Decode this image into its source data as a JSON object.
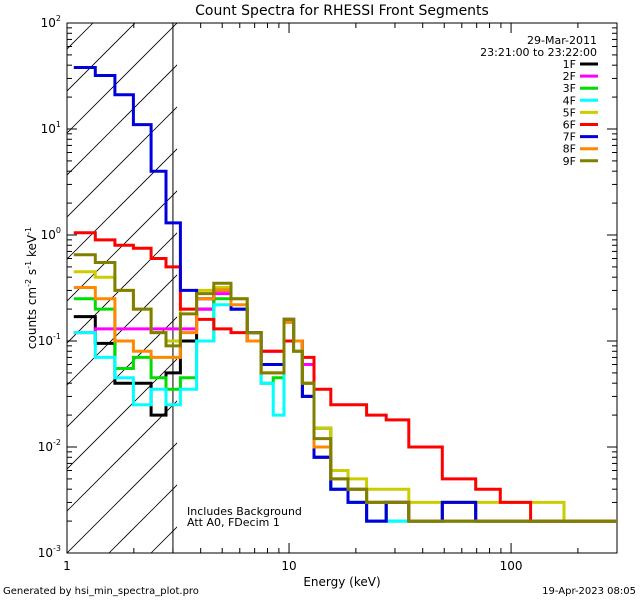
{
  "chart_data": {
    "type": "line",
    "title": "Count Spectra for RHESSI Front Segments",
    "xlabel": "Energy (keV)",
    "ylabel": "counts cm^-2 s^-1 keV^-1",
    "xscale": "log",
    "yscale": "log",
    "xlim": [
      1,
      300
    ],
    "ylim": [
      0.001,
      100
    ],
    "x_tick_labels": [
      {
        "value": 1,
        "label": "1"
      },
      {
        "value": 10,
        "label": "10"
      },
      {
        "value": 100,
        "label": "100"
      }
    ],
    "y_tick_labels": [
      {
        "value": 0.001,
        "base": "10",
        "exp": "-3"
      },
      {
        "value": 0.01,
        "base": "10",
        "exp": "-2"
      },
      {
        "value": 0.1,
        "base": "10",
        "exp": "-1"
      },
      {
        "value": 1,
        "base": "10",
        "exp": "0"
      },
      {
        "value": 10,
        "base": "10",
        "exp": "1"
      },
      {
        "value": 100,
        "base": "10",
        "exp": "2"
      }
    ],
    "date": "29-Mar-2011",
    "time_range": "23:21:00 to 23:22:00",
    "hatched_region": [
      1,
      3
    ],
    "annotations": [
      "Includes Background",
      "Att A0, FDecim 1"
    ],
    "series": [
      {
        "name": "1F",
        "color": "#000000",
        "points": [
          [
            1.2,
            0.17
          ],
          [
            1.5,
            0.095
          ],
          [
            1.8,
            0.04
          ],
          [
            2.2,
            0.04
          ],
          [
            2.6,
            0.02
          ],
          [
            3.0,
            0.05
          ],
          [
            3.5,
            0.1
          ],
          [
            4.2,
            0.2
          ],
          [
            5,
            0.3
          ],
          [
            6,
            0.2
          ],
          [
            7,
            0.12
          ],
          [
            8,
            0.06
          ],
          [
            9,
            0.06
          ],
          [
            10,
            0.16
          ],
          [
            11,
            0.1
          ],
          [
            12,
            0.03
          ],
          [
            14,
            0.008
          ],
          [
            17,
            0.004
          ],
          [
            20,
            0.003
          ],
          [
            25,
            0.002
          ],
          [
            30,
            0.003
          ],
          [
            40,
            0.002
          ],
          [
            60,
            0.003
          ],
          [
            80,
            0.002
          ],
          [
            100,
            0.002
          ],
          [
            150,
            0.002
          ],
          [
            200,
            0.002
          ],
          [
            280,
            0.002
          ]
        ]
      },
      {
        "name": "2F",
        "color": "#ff00ff",
        "points": [
          [
            1.2,
            0.12
          ],
          [
            1.5,
            0.13
          ],
          [
            1.8,
            0.13
          ],
          [
            2.2,
            0.13
          ],
          [
            2.6,
            0.13
          ],
          [
            3.0,
            0.13
          ],
          [
            3.5,
            0.13
          ],
          [
            4.2,
            0.2
          ],
          [
            5,
            0.28
          ],
          [
            6,
            0.2
          ],
          [
            7,
            0.1
          ],
          [
            8,
            0.08
          ],
          [
            9,
            0.08
          ],
          [
            10,
            0.16
          ],
          [
            11,
            0.1
          ],
          [
            12,
            0.06
          ],
          [
            14,
            0.015
          ],
          [
            17,
            0.006
          ],
          [
            20,
            0.004
          ],
          [
            25,
            0.003
          ],
          [
            30,
            0.003
          ],
          [
            40,
            0.002
          ],
          [
            60,
            0.002
          ],
          [
            80,
            0.002
          ],
          [
            100,
            0.002
          ],
          [
            150,
            0.002
          ],
          [
            200,
            0.002
          ],
          [
            280,
            0.002
          ]
        ]
      },
      {
        "name": "3F",
        "color": "#00dd00",
        "points": [
          [
            1.2,
            0.25
          ],
          [
            1.5,
            0.2
          ],
          [
            1.8,
            0.055
          ],
          [
            2.2,
            0.07
          ],
          [
            2.6,
            0.045
          ],
          [
            3.0,
            0.035
          ],
          [
            3.5,
            0.045
          ],
          [
            4.2,
            0.1
          ],
          [
            5,
            0.25
          ],
          [
            6,
            0.2
          ],
          [
            7,
            0.1
          ],
          [
            8,
            0.04
          ],
          [
            9,
            0.045
          ],
          [
            10,
            0.15
          ],
          [
            11,
            0.08
          ],
          [
            12,
            0.04
          ],
          [
            14,
            0.015
          ],
          [
            17,
            0.006
          ],
          [
            20,
            0.004
          ],
          [
            25,
            0.003
          ],
          [
            30,
            0.002
          ],
          [
            40,
            0.002
          ],
          [
            60,
            0.002
          ],
          [
            80,
            0.002
          ],
          [
            100,
            0.002
          ],
          [
            150,
            0.002
          ],
          [
            200,
            0.002
          ],
          [
            280,
            0.002
          ]
        ]
      },
      {
        "name": "4F",
        "color": "#00ffff",
        "points": [
          [
            1.2,
            0.12
          ],
          [
            1.5,
            0.07
          ],
          [
            1.8,
            0.045
          ],
          [
            2.2,
            0.025
          ],
          [
            2.6,
            0.035
          ],
          [
            3.0,
            0.025
          ],
          [
            3.5,
            0.035
          ],
          [
            4.2,
            0.1
          ],
          [
            5,
            0.22
          ],
          [
            6,
            0.2
          ],
          [
            7,
            0.12
          ],
          [
            8,
            0.04
          ],
          [
            9,
            0.02
          ],
          [
            10,
            0.15
          ],
          [
            11,
            0.1
          ],
          [
            12,
            0.04
          ],
          [
            14,
            0.01
          ],
          [
            17,
            0.004
          ],
          [
            20,
            0.003
          ],
          [
            25,
            0.002
          ],
          [
            30,
            0.002
          ],
          [
            40,
            0.002
          ],
          [
            60,
            0.002
          ],
          [
            80,
            0.002
          ],
          [
            100,
            0.002
          ],
          [
            150,
            0.002
          ],
          [
            200,
            0.002
          ],
          [
            280,
            0.002
          ]
        ]
      },
      {
        "name": "5F",
        "color": "#cccc00",
        "points": [
          [
            1.2,
            0.45
          ],
          [
            1.5,
            0.4
          ],
          [
            1.8,
            0.3
          ],
          [
            2.2,
            0.2
          ],
          [
            2.6,
            0.12
          ],
          [
            3.0,
            0.1
          ],
          [
            3.5,
            0.2
          ],
          [
            4.2,
            0.3
          ],
          [
            5,
            0.32
          ],
          [
            6,
            0.25
          ],
          [
            7,
            0.12
          ],
          [
            8,
            0.06
          ],
          [
            9,
            0.06
          ],
          [
            10,
            0.16
          ],
          [
            11,
            0.1
          ],
          [
            12,
            0.04
          ],
          [
            14,
            0.015
          ],
          [
            17,
            0.006
          ],
          [
            20,
            0.005
          ],
          [
            25,
            0.004
          ],
          [
            30,
            0.004
          ],
          [
            40,
            0.003
          ],
          [
            60,
            0.003
          ],
          [
            80,
            0.003
          ],
          [
            100,
            0.003
          ],
          [
            150,
            0.003
          ],
          [
            200,
            0.002
          ],
          [
            280,
            0.002
          ]
        ]
      },
      {
        "name": "6F",
        "color": "#ff0000",
        "points": [
          [
            1.2,
            1.05
          ],
          [
            1.5,
            0.9
          ],
          [
            1.8,
            0.8
          ],
          [
            2.2,
            0.75
          ],
          [
            2.6,
            0.6
          ],
          [
            3.0,
            0.5
          ],
          [
            3.5,
            0.2
          ],
          [
            4.2,
            0.16
          ],
          [
            5,
            0.13
          ],
          [
            6,
            0.12
          ],
          [
            7,
            0.1
          ],
          [
            8,
            0.08
          ],
          [
            9,
            0.08
          ],
          [
            10,
            0.1
          ],
          [
            11,
            0.1
          ],
          [
            12,
            0.07
          ],
          [
            14,
            0.035
          ],
          [
            17,
            0.025
          ],
          [
            20,
            0.025
          ],
          [
            25,
            0.02
          ],
          [
            30,
            0.018
          ],
          [
            40,
            0.01
          ],
          [
            60,
            0.005
          ],
          [
            80,
            0.004
          ],
          [
            100,
            0.003
          ],
          [
            150,
            0.002
          ],
          [
            200,
            0.002
          ],
          [
            280,
            0.002
          ]
        ]
      },
      {
        "name": "7F",
        "color": "#0000dd",
        "points": [
          [
            1.2,
            38
          ],
          [
            1.5,
            32
          ],
          [
            1.8,
            21
          ],
          [
            2.2,
            11
          ],
          [
            2.6,
            4
          ],
          [
            3.0,
            1.3
          ],
          [
            3.5,
            0.3
          ],
          [
            4.2,
            0.25
          ],
          [
            5,
            0.3
          ],
          [
            6,
            0.2
          ],
          [
            7,
            0.12
          ],
          [
            8,
            0.06
          ],
          [
            9,
            0.06
          ],
          [
            10,
            0.16
          ],
          [
            11,
            0.1
          ],
          [
            12,
            0.03
          ],
          [
            14,
            0.008
          ],
          [
            17,
            0.004
          ],
          [
            20,
            0.003
          ],
          [
            25,
            0.002
          ],
          [
            30,
            0.003
          ],
          [
            40,
            0.002
          ],
          [
            60,
            0.003
          ],
          [
            80,
            0.002
          ],
          [
            100,
            0.002
          ],
          [
            150,
            0.002
          ],
          [
            200,
            0.002
          ],
          [
            280,
            0.002
          ]
        ]
      },
      {
        "name": "8F",
        "color": "#ff8800",
        "points": [
          [
            1.2,
            0.32
          ],
          [
            1.5,
            0.25
          ],
          [
            1.8,
            0.1
          ],
          [
            2.2,
            0.08
          ],
          [
            2.6,
            0.07
          ],
          [
            3.0,
            0.07
          ],
          [
            3.5,
            0.12
          ],
          [
            4.2,
            0.25
          ],
          [
            5,
            0.3
          ],
          [
            6,
            0.22
          ],
          [
            7,
            0.1
          ],
          [
            8,
            0.05
          ],
          [
            9,
            0.05
          ],
          [
            10,
            0.15
          ],
          [
            11,
            0.1
          ],
          [
            12,
            0.04
          ],
          [
            14,
            0.01
          ],
          [
            17,
            0.005
          ],
          [
            20,
            0.004
          ],
          [
            25,
            0.003
          ],
          [
            30,
            0.003
          ],
          [
            40,
            0.002
          ],
          [
            60,
            0.002
          ],
          [
            80,
            0.002
          ],
          [
            100,
            0.002
          ],
          [
            150,
            0.002
          ],
          [
            200,
            0.002
          ],
          [
            280,
            0.002
          ]
        ]
      },
      {
        "name": "9F",
        "color": "#808000",
        "points": [
          [
            1.2,
            0.65
          ],
          [
            1.5,
            0.55
          ],
          [
            1.8,
            0.3
          ],
          [
            2.2,
            0.2
          ],
          [
            2.6,
            0.12
          ],
          [
            3.0,
            0.09
          ],
          [
            3.5,
            0.18
          ],
          [
            4.2,
            0.28
          ],
          [
            5,
            0.35
          ],
          [
            6,
            0.25
          ],
          [
            7,
            0.12
          ],
          [
            8,
            0.05
          ],
          [
            9,
            0.05
          ],
          [
            10,
            0.16
          ],
          [
            11,
            0.08
          ],
          [
            12,
            0.04
          ],
          [
            14,
            0.012
          ],
          [
            17,
            0.005
          ],
          [
            20,
            0.004
          ],
          [
            25,
            0.003
          ],
          [
            30,
            0.003
          ],
          [
            40,
            0.002
          ],
          [
            60,
            0.002
          ],
          [
            80,
            0.002
          ],
          [
            100,
            0.002
          ],
          [
            150,
            0.002
          ],
          [
            200,
            0.002
          ],
          [
            280,
            0.002
          ]
        ]
      }
    ]
  },
  "footer": {
    "generated_by": "Generated by hsi_min_spectra_plot.pro",
    "render_date": "19-Apr-2023 08:05"
  }
}
